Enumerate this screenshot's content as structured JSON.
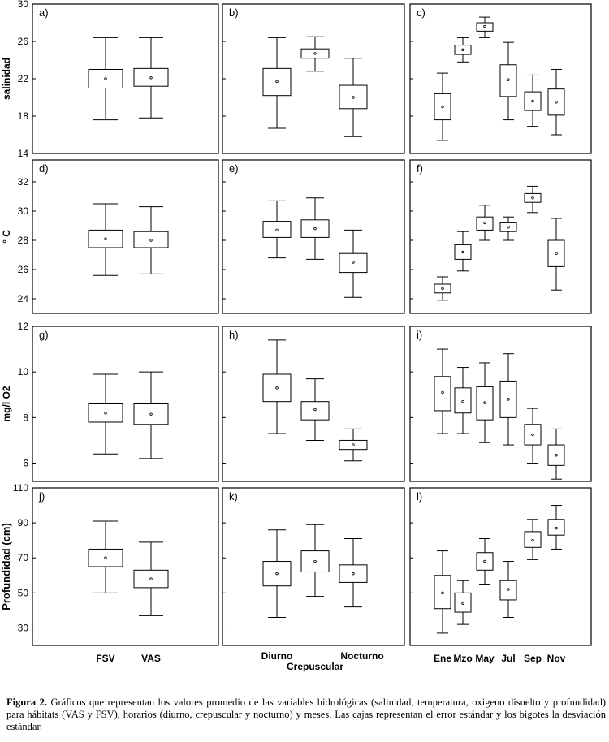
{
  "chart_data": [
    {
      "panel": "a)",
      "type": "boxplot",
      "ylabel": "salinidad",
      "ylim": [
        14,
        30
      ],
      "yticks": [
        14,
        18,
        22,
        26,
        30
      ],
      "categories": [
        "FSV",
        "VAS"
      ],
      "boxes": [
        {
          "category": "FSV",
          "mean": 22.0,
          "box": [
            21.0,
            23.0
          ],
          "whiskers": [
            17.6,
            26.4
          ]
        },
        {
          "category": "VAS",
          "mean": 22.1,
          "box": [
            21.2,
            23.1
          ],
          "whiskers": [
            17.8,
            26.4
          ]
        }
      ]
    },
    {
      "panel": "b)",
      "type": "boxplot",
      "ylim": [
        14,
        30
      ],
      "yticks": [
        14,
        18,
        22,
        26,
        30
      ],
      "categories": [
        "Diurno",
        "Crepuscular",
        "Nocturno"
      ],
      "boxes": [
        {
          "category": "Diurno",
          "mean": 21.7,
          "box": [
            20.2,
            23.1
          ],
          "whiskers": [
            16.7,
            26.4
          ]
        },
        {
          "category": "Crepuscular",
          "mean": 24.7,
          "box": [
            24.2,
            25.2
          ],
          "whiskers": [
            22.8,
            26.5
          ]
        },
        {
          "category": "Nocturno",
          "mean": 20.0,
          "box": [
            18.8,
            21.3
          ],
          "whiskers": [
            15.8,
            24.2
          ]
        }
      ]
    },
    {
      "panel": "c)",
      "type": "boxplot",
      "ylim": [
        14,
        30
      ],
      "yticks": [
        14,
        18,
        22,
        26,
        30
      ],
      "categories": [
        "Ene",
        "Mzo",
        "May",
        "Jul",
        "Sep",
        "Nov"
      ],
      "boxes": [
        {
          "category": "Ene",
          "mean": 19.0,
          "box": [
            17.6,
            20.4
          ],
          "whiskers": [
            15.4,
            22.6
          ]
        },
        {
          "category": "Mzo",
          "mean": 25.1,
          "box": [
            24.6,
            25.6
          ],
          "whiskers": [
            23.8,
            26.4
          ]
        },
        {
          "category": "May",
          "mean": 27.6,
          "box": [
            27.1,
            28.0
          ],
          "whiskers": [
            26.4,
            28.6
          ]
        },
        {
          "category": "Jul",
          "mean": 21.9,
          "box": [
            20.1,
            23.5
          ],
          "whiskers": [
            17.6,
            25.9
          ]
        },
        {
          "category": "Sep",
          "mean": 19.6,
          "box": [
            18.6,
            20.6
          ],
          "whiskers": [
            16.9,
            22.4
          ]
        },
        {
          "category": "Nov",
          "mean": 19.5,
          "box": [
            18.1,
            20.9
          ],
          "whiskers": [
            16.0,
            23.0
          ]
        }
      ]
    },
    {
      "panel": "d)",
      "type": "boxplot",
      "ylabel": "° C",
      "ylim": [
        23,
        33.5
      ],
      "yticks": [
        24,
        26,
        28,
        30,
        32
      ],
      "categories": [
        "FSV",
        "VAS"
      ],
      "boxes": [
        {
          "category": "FSV",
          "mean": 28.1,
          "box": [
            27.5,
            28.7
          ],
          "whiskers": [
            25.6,
            30.5
          ]
        },
        {
          "category": "VAS",
          "mean": 28.0,
          "box": [
            27.5,
            28.6
          ],
          "whiskers": [
            25.7,
            30.3
          ]
        }
      ]
    },
    {
      "panel": "e)",
      "type": "boxplot",
      "ylim": [
        23,
        33.5
      ],
      "yticks": [
        24,
        26,
        28,
        30,
        32
      ],
      "categories": [
        "Diurno",
        "Crepuscular",
        "Nocturno"
      ],
      "boxes": [
        {
          "category": "Diurno",
          "mean": 28.7,
          "box": [
            28.2,
            29.3
          ],
          "whiskers": [
            26.8,
            30.7
          ]
        },
        {
          "category": "Crepuscular",
          "mean": 28.8,
          "box": [
            28.2,
            29.4
          ],
          "whiskers": [
            26.7,
            30.9
          ]
        },
        {
          "category": "Nocturno",
          "mean": 26.5,
          "box": [
            25.8,
            27.1
          ],
          "whiskers": [
            24.1,
            28.7
          ]
        }
      ]
    },
    {
      "panel": "f)",
      "type": "boxplot",
      "ylim": [
        23,
        33.5
      ],
      "yticks": [
        24,
        26,
        28,
        30,
        32
      ],
      "categories": [
        "Ene",
        "Mzo",
        "May",
        "Jul",
        "Sep",
        "Nov"
      ],
      "boxes": [
        {
          "category": "Ene",
          "mean": 24.7,
          "box": [
            24.4,
            25.0
          ],
          "whiskers": [
            23.9,
            25.5
          ]
        },
        {
          "category": "Mzo",
          "mean": 27.2,
          "box": [
            26.7,
            27.7
          ],
          "whiskers": [
            25.9,
            28.6
          ]
        },
        {
          "category": "May",
          "mean": 29.2,
          "box": [
            28.7,
            29.6
          ],
          "whiskers": [
            28.0,
            30.4
          ]
        },
        {
          "category": "Jul",
          "mean": 28.9,
          "box": [
            28.6,
            29.2
          ],
          "whiskers": [
            28.0,
            29.6
          ]
        },
        {
          "category": "Sep",
          "mean": 30.9,
          "box": [
            30.6,
            31.2
          ],
          "whiskers": [
            29.9,
            31.7
          ]
        },
        {
          "category": "Nov",
          "mean": 27.1,
          "box": [
            26.2,
            28.0
          ],
          "whiskers": [
            24.6,
            29.5
          ]
        }
      ]
    },
    {
      "panel": "g)",
      "type": "boxplot",
      "ylabel": "mg/l O2",
      "ylim": [
        5.2,
        12
      ],
      "yticks": [
        6,
        8,
        10,
        12
      ],
      "categories": [
        "FSV",
        "VAS"
      ],
      "boxes": [
        {
          "category": "FSV",
          "mean": 8.2,
          "box": [
            7.8,
            8.6
          ],
          "whiskers": [
            6.4,
            9.9
          ]
        },
        {
          "category": "VAS",
          "mean": 8.15,
          "box": [
            7.7,
            8.6
          ],
          "whiskers": [
            6.2,
            10.0
          ]
        }
      ]
    },
    {
      "panel": "h)",
      "type": "boxplot",
      "ylim": [
        5.2,
        12
      ],
      "yticks": [
        6,
        8,
        10,
        12
      ],
      "categories": [
        "Diurno",
        "Crepuscular",
        "Nocturno"
      ],
      "boxes": [
        {
          "category": "Diurno",
          "mean": 9.3,
          "box": [
            8.7,
            9.9
          ],
          "whiskers": [
            7.3,
            11.4
          ]
        },
        {
          "category": "Crepuscular",
          "mean": 8.35,
          "box": [
            7.9,
            8.7
          ],
          "whiskers": [
            7.0,
            9.7
          ]
        },
        {
          "category": "Nocturno",
          "mean": 6.8,
          "box": [
            6.6,
            7.0
          ],
          "whiskers": [
            6.1,
            7.5
          ]
        }
      ]
    },
    {
      "panel": "i)",
      "type": "boxplot",
      "ylim": [
        5.2,
        12
      ],
      "yticks": [
        6,
        8,
        10,
        12
      ],
      "categories": [
        "Ene",
        "Mzo",
        "May",
        "Jul",
        "Sep",
        "Nov"
      ],
      "boxes": [
        {
          "category": "Ene",
          "mean": 9.1,
          "box": [
            8.3,
            9.8
          ],
          "whiskers": [
            7.3,
            11.0
          ]
        },
        {
          "category": "Mzo",
          "mean": 8.7,
          "box": [
            8.2,
            9.3
          ],
          "whiskers": [
            7.3,
            10.2
          ]
        },
        {
          "category": "May",
          "mean": 8.65,
          "box": [
            7.9,
            9.35
          ],
          "whiskers": [
            6.9,
            10.4
          ]
        },
        {
          "category": "Jul",
          "mean": 8.8,
          "box": [
            8.0,
            9.6
          ],
          "whiskers": [
            6.8,
            10.8
          ]
        },
        {
          "category": "Sep",
          "mean": 7.25,
          "box": [
            6.8,
            7.7
          ],
          "whiskers": [
            6.0,
            8.4
          ]
        },
        {
          "category": "Nov",
          "mean": 6.35,
          "box": [
            5.9,
            6.8
          ],
          "whiskers": [
            5.3,
            7.5
          ]
        }
      ]
    },
    {
      "panel": "j)",
      "type": "boxplot",
      "ylabel": "Profundidad (cm)",
      "ylim": [
        20,
        110
      ],
      "yticks": [
        30,
        50,
        70,
        90,
        110
      ],
      "categories": [
        "FSV",
        "VAS"
      ],
      "boxes": [
        {
          "category": "FSV",
          "mean": 70,
          "box": [
            65,
            75
          ],
          "whiskers": [
            50,
            91
          ]
        },
        {
          "category": "VAS",
          "mean": 58,
          "box": [
            53,
            63
          ],
          "whiskers": [
            37,
            79
          ]
        }
      ]
    },
    {
      "panel": "k)",
      "type": "boxplot",
      "ylim": [
        20,
        110
      ],
      "yticks": [
        30,
        50,
        70,
        90,
        110
      ],
      "categories": [
        "Diurno",
        "Crepuscular",
        "Nocturno"
      ],
      "boxes": [
        {
          "category": "Diurno",
          "mean": 61,
          "box": [
            54,
            68
          ],
          "whiskers": [
            36,
            86
          ]
        },
        {
          "category": "Crepuscular",
          "mean": 68,
          "box": [
            62,
            74
          ],
          "whiskers": [
            48,
            89
          ]
        },
        {
          "category": "Nocturno",
          "mean": 61,
          "box": [
            56,
            66
          ],
          "whiskers": [
            42,
            81
          ]
        }
      ]
    },
    {
      "panel": "l)",
      "type": "boxplot",
      "ylim": [
        20,
        110
      ],
      "yticks": [
        30,
        50,
        70,
        90,
        110
      ],
      "categories": [
        "Ene",
        "Mzo",
        "May",
        "Jul",
        "Sep",
        "Nov"
      ],
      "boxes": [
        {
          "category": "Ene",
          "mean": 50,
          "box": [
            41,
            60
          ],
          "whiskers": [
            27,
            74
          ]
        },
        {
          "category": "Mzo",
          "mean": 44,
          "box": [
            39,
            50
          ],
          "whiskers": [
            32,
            57
          ]
        },
        {
          "category": "May",
          "mean": 68,
          "box": [
            63,
            73
          ],
          "whiskers": [
            55,
            81
          ]
        },
        {
          "category": "Jul",
          "mean": 52,
          "box": [
            46,
            57
          ],
          "whiskers": [
            36,
            68
          ]
        },
        {
          "category": "Sep",
          "mean": 80,
          "box": [
            76,
            85
          ],
          "whiskers": [
            69,
            92
          ]
        },
        {
          "category": "Nov",
          "mean": 87,
          "box": [
            83,
            92
          ],
          "whiskers": [
            75,
            100
          ]
        }
      ]
    }
  ],
  "axis_titles": {
    "left_x": [
      "FSV",
      "VAS"
    ],
    "mid_x": [
      "Diurno",
      "Nocturno"
    ],
    "mid_x_title": "Crepuscular",
    "right_x": [
      "Ene",
      "Mzo",
      "May",
      "Jul",
      "Sep",
      "Nov"
    ]
  },
  "caption": {
    "label": "Figura 2.",
    "text": "Gráficos que representan los valores promedio de las variables hidrológicas (salinidad, temperatura, oxigeno disuelto y profundidad) para hábitats (VAS y FSV), horarios (diurno, crepuscular y nocturno) y meses. Las cajas representan el error estándar y los bigotes la desviación estándar."
  }
}
